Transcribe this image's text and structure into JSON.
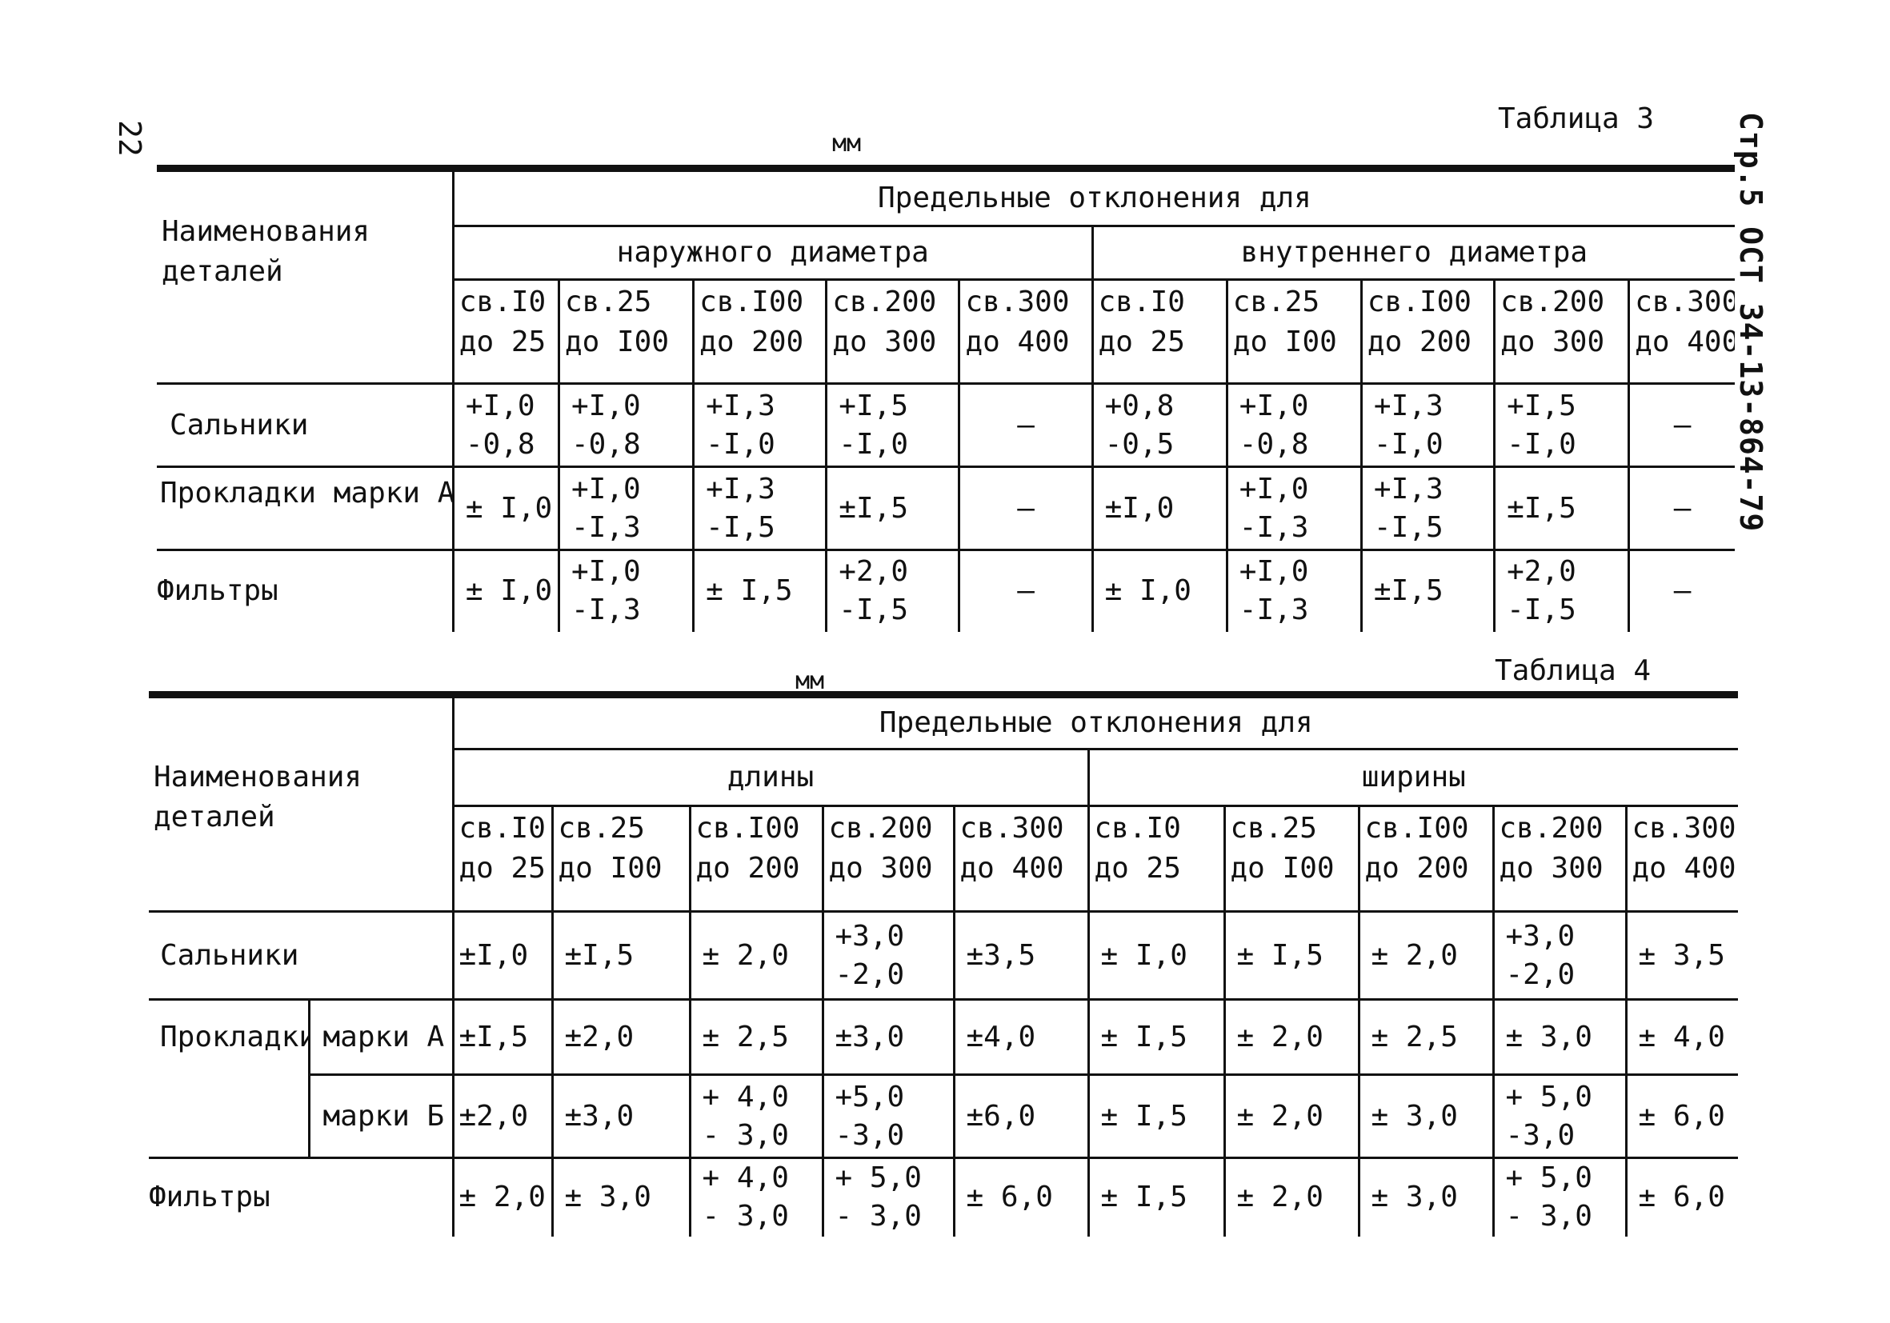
{
  "page": {
    "number": "22",
    "side_code": "Стр.5  ОСТ 34-13-864-79"
  },
  "table3": {
    "title": "Таблица 3",
    "unit": "мм",
    "name_header": "Наименования\nдеталей",
    "limits_header": "Предельные отклонения для",
    "group1": "наружного диаметра",
    "group2": "внутреннего диаметра",
    "ranges": [
      "св.I0\nдо 25",
      "св.25\nдо I00",
      "св.I00\nдо 200",
      "св.200\nдо 300",
      "св.300\nдо 400"
    ],
    "rows": [
      {
        "name": "Сальники",
        "values": [
          "+I,0\n-0,8",
          "+I,0\n-0,8",
          "+I,3\n-I,0",
          "+I,5\n-I,0",
          "–",
          "+0,8\n-0,5",
          "+I,0\n-0,8",
          "+I,3\n-I,0",
          "+I,5\n-I,0",
          "–"
        ]
      },
      {
        "name": "Прокладки марки А",
        "values": [
          "± I,0",
          "+I,0\n-I,3",
          "+I,3\n-I,5",
          "±I,5",
          "–",
          "±I,0",
          "+I,0\n-I,3",
          "+I,3\n-I,5",
          "±I,5",
          "–"
        ]
      },
      {
        "name": "Фильтры",
        "values": [
          "± I,0",
          "+I,0\n-I,3",
          "± I,5",
          "+2,0\n-I,5",
          "–",
          "± I,0",
          "+I,0\n-I,3",
          "±I,5",
          "+2,0\n-I,5",
          "–"
        ]
      }
    ]
  },
  "table4": {
    "title": "Таблица 4",
    "unit": "мм",
    "name_header": "Наименования\nдеталей",
    "limits_header": "Предельные отклонения для",
    "group1": "длины",
    "group2": "ширины",
    "ranges": [
      "св.I0\nдо 25",
      "св.25\nдо I00",
      "св.I00\nдо 200",
      "св.200\nдо 300",
      "св.300\nдо 400"
    ],
    "rows": [
      {
        "name": "Сальники",
        "values": [
          "±I,0",
          "±I,5",
          "± 2,0",
          "+3,0\n-2,0",
          "±3,5",
          "± I,0",
          "± I,5",
          "± 2,0",
          "+3,0\n-2,0",
          "± 3,5"
        ]
      },
      {
        "name": "Прокладки",
        "sub": "марки А",
        "values": [
          "±I,5",
          "±2,0",
          "± 2,5",
          "±3,0",
          "±4,0",
          "± I,5",
          "± 2,0",
          "± 2,5",
          "± 3,0",
          "± 4,0"
        ]
      },
      {
        "name": "",
        "sub": "марки Б",
        "values": [
          "±2,0",
          "±3,0",
          "+ 4,0\n- 3,0",
          "+5,0\n-3,0",
          "±6,0",
          "± I,5",
          "± 2,0",
          "± 3,0",
          "+ 5,0\n-3,0",
          "± 6,0"
        ]
      },
      {
        "name": "Фильтры",
        "values": [
          "± 2,0",
          "± 3,0",
          "+ 4,0\n- 3,0",
          "+ 5,0\n- 3,0",
          "± 6,0",
          "± I,5",
          "± 2,0",
          "± 3,0",
          "+ 5,0\n- 3,0",
          "± 6,0"
        ]
      }
    ]
  }
}
